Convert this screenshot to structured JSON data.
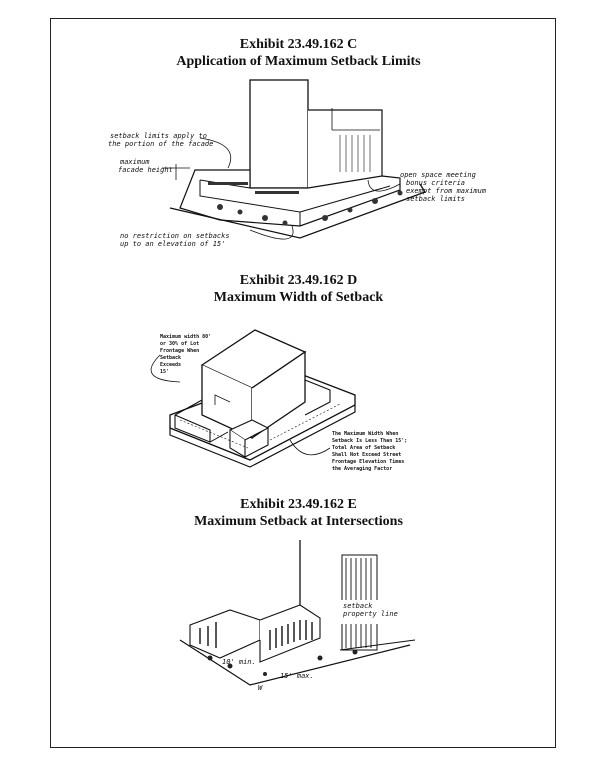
{
  "exhibits": [
    {
      "title": "Exhibit 23.49.162 C",
      "subtitle": "Application of Maximum Setback Limits",
      "annotations": {
        "setback_limits": [
          "setback limits apply to",
          "the portion of the facade"
        ],
        "max_facade_height": [
          "maximum",
          "facade height"
        ],
        "open_space": [
          "open space meeting",
          "bonus criteria",
          "exempt from maximum",
          "setback limits"
        ],
        "no_restriction": [
          "no restriction on setbacks",
          "up to an elevation of 15'"
        ]
      }
    },
    {
      "title": "Exhibit 23.49.162 D",
      "subtitle": "Maximum Width of Setback",
      "annotations": {
        "max_width": [
          "Maximum width 80'",
          "or 30% of Lot",
          "Frontage When",
          "Setback",
          "Exceeds",
          "15'"
        ],
        "total_area": [
          "The Maximum Width When",
          "Setback Is Less Than 15';",
          "Total Area of Setback",
          "Shall Not Exceed Street",
          "Frontage Elevation Times",
          "the Averaging Factor"
        ]
      }
    },
    {
      "title": "Exhibit 23.49.162 E",
      "subtitle": "Maximum Setback at Intersections",
      "annotations": {
        "corner": [
          "setback",
          "property line"
        ],
        "dims": [
          "10' min.",
          "15' max.",
          "W"
        ]
      }
    }
  ]
}
